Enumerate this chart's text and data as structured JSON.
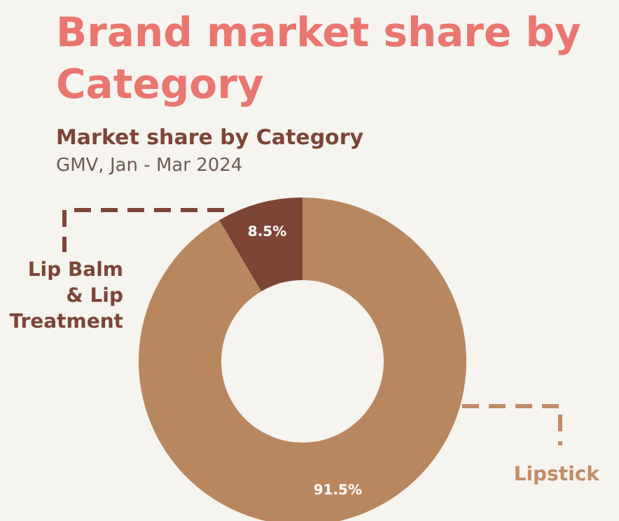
{
  "chart_data": {
    "type": "donut",
    "title": "Brand market share by Category",
    "subtitle": "Market share by Category",
    "annotations": [
      "GMV, Jan - Mar 2024"
    ],
    "categories": [
      "Lip Balm & Lip Treatment",
      "Lipstick"
    ],
    "values": [
      8.5,
      91.5
    ],
    "colors": [
      "#7d4536",
      "#b9875f"
    ],
    "value_labels": [
      "8.5%",
      "91.5%"
    ],
    "legend": false
  }
}
